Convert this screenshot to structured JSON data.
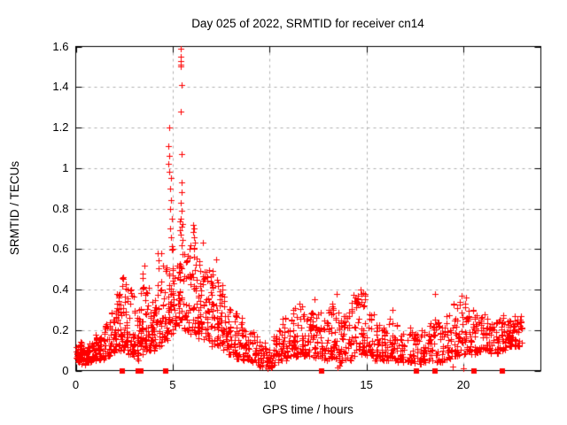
{
  "chart_data": {
    "type": "scatter",
    "title": "Day 025 of 2022, SRMTID for receiver cn14",
    "xlabel": "GPS time / hours",
    "ylabel": "SRMTID / TECUs",
    "xlim": [
      0,
      24
    ],
    "ylim": [
      0,
      1.6
    ],
    "x_ticks": [
      0,
      5,
      10,
      15,
      20
    ],
    "x_tick_labels": [
      "0",
      "5",
      "10",
      "15",
      "20"
    ],
    "y_ticks": [
      0,
      0.2,
      0.4,
      0.6,
      0.8,
      1,
      1.2,
      1.4,
      1.6
    ],
    "y_tick_labels": [
      "0",
      "0.2",
      "0.4",
      "0.6",
      "0.8",
      "1",
      "1.2",
      "1.4",
      "1.6"
    ],
    "grid": true,
    "legend": false,
    "marker": "plus",
    "marker_color": "#ff0000",
    "grid_color": "#b0b0b0",
    "axis_color": "#000000",
    "series_description": "Dense time-series scatter of SRMTID vs GPS time; quiet baseline near 0.1 TECUs, activity rising after 02:00, strong spike to 1.6 TECUs near 05:30, decay through 09:00, moderate 0.1-0.4 fluctuations until data end near 23:00; red squares on the axis mark zero/gap epochs.",
    "band_bins": [
      [
        0.0,
        0.3,
        0.04,
        0.14,
        22
      ],
      [
        0.3,
        0.6,
        0.03,
        0.13,
        22
      ],
      [
        0.6,
        0.9,
        0.04,
        0.15,
        22
      ],
      [
        0.9,
        1.2,
        0.05,
        0.18,
        22
      ],
      [
        1.2,
        1.5,
        0.05,
        0.2,
        22
      ],
      [
        1.5,
        1.8,
        0.07,
        0.24,
        22
      ],
      [
        1.8,
        2.1,
        0.09,
        0.3,
        24
      ],
      [
        2.1,
        2.4,
        0.1,
        0.38,
        24
      ],
      [
        2.4,
        2.7,
        0.1,
        0.46,
        26
      ],
      [
        2.7,
        3.0,
        0.08,
        0.4,
        24
      ],
      [
        3.0,
        3.3,
        0.05,
        0.3,
        20
      ],
      [
        3.3,
        3.6,
        0.08,
        0.5,
        26
      ],
      [
        3.6,
        3.9,
        0.1,
        0.44,
        24
      ],
      [
        3.9,
        4.2,
        0.1,
        0.42,
        24
      ],
      [
        4.2,
        4.5,
        0.12,
        0.58,
        26
      ],
      [
        4.5,
        4.8,
        0.15,
        0.52,
        26
      ],
      [
        4.8,
        5.1,
        0.18,
        0.62,
        26
      ],
      [
        5.1,
        5.35,
        0.22,
        0.55,
        20
      ],
      [
        5.35,
        5.6,
        0.25,
        0.8,
        22
      ],
      [
        5.6,
        5.9,
        0.2,
        0.62,
        24
      ],
      [
        5.9,
        6.3,
        0.18,
        0.7,
        28
      ],
      [
        6.3,
        6.6,
        0.16,
        0.55,
        24
      ],
      [
        6.6,
        7.0,
        0.14,
        0.5,
        28
      ],
      [
        7.0,
        7.4,
        0.12,
        0.52,
        28
      ],
      [
        7.4,
        7.8,
        0.1,
        0.42,
        26
      ],
      [
        7.8,
        8.2,
        0.08,
        0.36,
        24
      ],
      [
        8.2,
        8.6,
        0.06,
        0.28,
        24
      ],
      [
        8.6,
        9.0,
        0.05,
        0.25,
        24
      ],
      [
        9.0,
        9.4,
        0.04,
        0.2,
        22
      ],
      [
        9.4,
        9.8,
        0.02,
        0.14,
        20
      ],
      [
        9.8,
        10.2,
        0.02,
        0.13,
        20
      ],
      [
        10.2,
        10.6,
        0.04,
        0.2,
        22
      ],
      [
        10.6,
        11.0,
        0.05,
        0.26,
        24
      ],
      [
        11.0,
        11.4,
        0.06,
        0.3,
        26
      ],
      [
        11.4,
        11.8,
        0.07,
        0.32,
        26
      ],
      [
        11.8,
        12.2,
        0.07,
        0.3,
        26
      ],
      [
        12.2,
        12.6,
        0.06,
        0.28,
        24
      ],
      [
        12.6,
        13.0,
        0.05,
        0.3,
        24
      ],
      [
        13.0,
        13.4,
        0.06,
        0.34,
        26
      ],
      [
        13.4,
        13.8,
        0.04,
        0.32,
        24
      ],
      [
        13.8,
        14.2,
        0.05,
        0.3,
        24
      ],
      [
        14.2,
        14.6,
        0.07,
        0.38,
        26
      ],
      [
        14.6,
        15.0,
        0.08,
        0.4,
        26
      ],
      [
        15.0,
        15.4,
        0.06,
        0.3,
        24
      ],
      [
        15.4,
        15.8,
        0.05,
        0.24,
        22
      ],
      [
        15.8,
        16.2,
        0.05,
        0.26,
        22
      ],
      [
        16.2,
        16.6,
        0.05,
        0.24,
        22
      ],
      [
        16.6,
        17.0,
        0.04,
        0.2,
        20
      ],
      [
        17.0,
        17.4,
        0.04,
        0.22,
        20
      ],
      [
        17.4,
        17.8,
        0.03,
        0.18,
        20
      ],
      [
        17.8,
        18.2,
        0.04,
        0.2,
        20
      ],
      [
        18.2,
        18.6,
        0.05,
        0.26,
        22
      ],
      [
        18.6,
        19.0,
        0.04,
        0.24,
        22
      ],
      [
        19.0,
        19.4,
        0.05,
        0.28,
        22
      ],
      [
        19.4,
        19.8,
        0.07,
        0.34,
        24
      ],
      [
        19.8,
        20.2,
        0.08,
        0.36,
        24
      ],
      [
        20.2,
        20.6,
        0.08,
        0.3,
        24
      ],
      [
        20.6,
        21.0,
        0.09,
        0.3,
        24
      ],
      [
        21.0,
        21.4,
        0.1,
        0.28,
        24
      ],
      [
        21.4,
        21.8,
        0.08,
        0.24,
        22
      ],
      [
        21.8,
        22.2,
        0.1,
        0.28,
        24
      ],
      [
        22.2,
        22.6,
        0.12,
        0.28,
        26
      ],
      [
        22.6,
        23.05,
        0.12,
        0.27,
        26
      ]
    ],
    "peak_points": [
      [
        5.41,
        1.59
      ],
      [
        5.42,
        1.55
      ],
      [
        5.41,
        1.53
      ],
      [
        5.43,
        1.51
      ],
      [
        5.42,
        1.5
      ],
      [
        5.44,
        1.41
      ],
      [
        5.43,
        1.28
      ],
      [
        5.45,
        1.07
      ],
      [
        5.44,
        0.93
      ],
      [
        5.46,
        0.88
      ],
      [
        5.4,
        0.83
      ],
      [
        5.47,
        0.79
      ],
      [
        5.42,
        0.75
      ],
      [
        5.48,
        0.71
      ],
      [
        5.43,
        0.67
      ],
      [
        5.46,
        0.62
      ],
      [
        4.8,
        1.2
      ],
      [
        4.78,
        1.11
      ],
      [
        4.82,
        1.06
      ],
      [
        4.77,
        1.02
      ],
      [
        4.81,
        0.98
      ],
      [
        4.9,
        0.95
      ],
      [
        4.88,
        0.9
      ],
      [
        4.92,
        0.84
      ],
      [
        4.85,
        0.8
      ],
      [
        4.95,
        0.75
      ],
      [
        4.87,
        0.7
      ],
      [
        4.93,
        0.66
      ],
      [
        6.05,
        0.72
      ],
      [
        6.1,
        0.7
      ],
      [
        6.08,
        0.66
      ],
      [
        6.15,
        0.63
      ],
      [
        6.12,
        0.6
      ],
      [
        6.55,
        0.63
      ],
      [
        7.25,
        0.55
      ],
      [
        3.55,
        0.52
      ],
      [
        4.42,
        0.58
      ],
      [
        2.45,
        0.46
      ],
      [
        13.45,
        0.38
      ],
      [
        14.7,
        0.4
      ],
      [
        14.92,
        0.38
      ],
      [
        18.52,
        0.38
      ],
      [
        19.9,
        0.37
      ],
      [
        20.15,
        0.36
      ],
      [
        11.55,
        0.33
      ],
      [
        12.3,
        0.35
      ],
      [
        16.35,
        0.3
      ],
      [
        11.3,
        0.31
      ]
    ],
    "near_zero_points": [
      [
        9.9,
        0.012
      ],
      [
        9.98,
        0.02
      ],
      [
        10.06,
        0.015
      ],
      [
        13.52,
        0.015
      ],
      [
        13.6,
        0.025
      ],
      [
        19.45,
        0.02
      ],
      [
        20.0,
        0.012
      ]
    ],
    "zero_marker_squares_x": [
      2.4,
      3.22,
      3.34,
      4.64,
      12.68,
      17.56,
      18.55,
      20.55,
      22.0
    ],
    "random_seed": 20220125
  }
}
